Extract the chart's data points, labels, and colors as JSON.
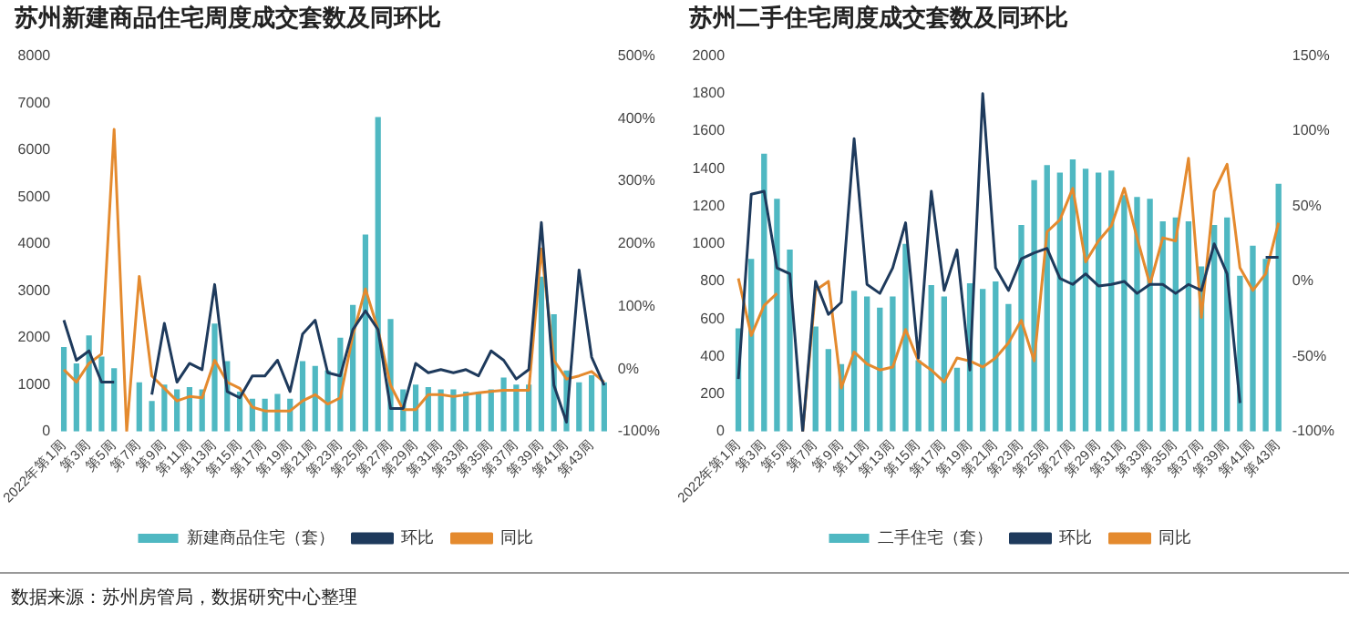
{
  "chart_data": [
    {
      "type": "bar",
      "title": "苏州新建商品住宅周度成交套数及同环比",
      "legend": "bottom",
      "marker": "none",
      "categories": [
        "2022年第1周",
        null,
        "第3周",
        null,
        "第5周",
        null,
        "第7周",
        null,
        "第9周",
        null,
        "第11周",
        null,
        "第13周",
        null,
        "第15周",
        null,
        "第17周",
        null,
        "第19周",
        null,
        "第21周",
        null,
        "第23周",
        null,
        "第25周",
        null,
        "第27周",
        null,
        "第29周",
        null,
        "第31周",
        null,
        "第33周",
        null,
        "第35周",
        null,
        "第37周",
        null,
        "第39周",
        null,
        "第41周",
        null,
        "第43周",
        null
      ],
      "series": [
        {
          "name": "新建商品住宅（套）",
          "color": "#4fb8c2",
          "values": [
            1800,
            1450,
            2050,
            1600,
            1350,
            null,
            1050,
            650,
            1000,
            900,
            950,
            900,
            2300,
            1500,
            850,
            700,
            700,
            800,
            700,
            1500,
            1400,
            1300,
            2000,
            2700,
            4200,
            6700,
            2400,
            900,
            1000,
            950,
            900,
            900,
            850,
            850,
            900,
            1150,
            1000,
            1000,
            3300,
            2500,
            1300,
            1050,
            1200,
            1050
          ]
        },
        {
          "name": "环比",
          "type": "line",
          "axis": "y2",
          "color": "#1e3a5c",
          "values": [
            78,
            14,
            29,
            -21,
            -21,
            null,
            null,
            -41,
            73,
            -21,
            9,
            -1,
            135,
            -36,
            -46,
            -11,
            -11,
            14,
            -36,
            56,
            78,
            -6,
            -11,
            63,
            93,
            63,
            -63,
            -63,
            9,
            -6,
            -1,
            -6,
            -1,
            -11,
            29,
            14,
            -16,
            -1,
            234,
            -26,
            -85,
            158,
            19,
            -26
          ]
        },
        {
          "name": "同比",
          "type": "line",
          "axis": "y2",
          "color": "#e48a2e",
          "values": [
            -1,
            -21,
            9,
            24,
            383,
            -100,
            148,
            -11,
            -31,
            -51,
            -44,
            -46,
            14,
            -21,
            -31,
            -61,
            -67,
            -67,
            -67,
            -51,
            -41,
            -56,
            -46,
            54,
            128,
            63,
            -26,
            -65,
            -65,
            -41,
            -41,
            -44,
            -41,
            -38,
            -36,
            -34,
            -34,
            -34,
            192,
            14,
            -16,
            -11,
            -4,
            -21
          ]
        }
      ],
      "ylim": [
        0,
        8000
      ],
      "yticks": [
        0,
        1000,
        2000,
        3000,
        4000,
        5000,
        6000,
        7000,
        8000
      ],
      "y2lim": [
        -100,
        500
      ],
      "y2ticks": [
        {
          "value": -100,
          "label": "-100%"
        },
        {
          "value": 0,
          "label": "0%"
        },
        {
          "value": 100,
          "label": "100%"
        },
        {
          "value": 200,
          "label": "200%"
        },
        {
          "value": 300,
          "label": "300%"
        },
        {
          "value": 400,
          "label": "400%"
        },
        {
          "value": 500,
          "label": "500%"
        }
      ],
      "annotations": [
        "数据来源：苏州房管局，数据研究中心整理"
      ]
    },
    {
      "type": "bar",
      "title": "苏州二手住宅周度成交套数及同环比",
      "legend": "bottom",
      "marker": "none",
      "categories": [
        "2022年第1周",
        null,
        "第3周",
        null,
        "第5周",
        null,
        "第7周",
        null,
        "第9周",
        null,
        "第11周",
        null,
        "第13周",
        null,
        "第15周",
        null,
        "第17周",
        null,
        "第19周",
        null,
        "第21周",
        null,
        "第23周",
        null,
        "第25周",
        null,
        "第27周",
        null,
        "第29周",
        null,
        "第31周",
        null,
        "第33周",
        null,
        "第35周",
        null,
        "第37周",
        null,
        "第39周",
        null,
        "第41周",
        null,
        "第43周"
      ],
      "series": [
        {
          "name": "二手住宅（套）",
          "color": "#4fb8c2",
          "values": [
            550,
            920,
            1480,
            1240,
            970,
            null,
            560,
            440,
            360,
            750,
            720,
            660,
            720,
            1000,
            380,
            780,
            720,
            340,
            790,
            760,
            800,
            680,
            1100,
            1340,
            1420,
            1380,
            1450,
            1400,
            1380,
            1390,
            1260,
            1250,
            1240,
            1120,
            1140,
            1120,
            880,
            1100,
            1140,
            830,
            990,
            920,
            1320
          ]
        },
        {
          "name": "环比",
          "type": "line",
          "axis": "y2",
          "color": "#1e3a5c",
          "values": [
            -65,
            58,
            60,
            9,
            5,
            -100,
            0,
            -22,
            -14,
            95,
            -2,
            -8,
            9,
            39,
            -51,
            60,
            -6,
            21,
            -59,
            125,
            9,
            -6,
            15,
            19,
            22,
            2,
            -2,
            5,
            -3,
            -2,
            0,
            -8,
            -2,
            -2,
            -8,
            -2,
            -6,
            25,
            5,
            -81,
            null,
            16,
            16
          ]
        },
        {
          "name": "同比",
          "type": "line",
          "axis": "y2",
          "color": "#e48a2e",
          "values": [
            2,
            -36,
            -16,
            -8,
            null,
            -100,
            -6,
            0,
            -71,
            -47,
            -55,
            -59,
            -57,
            -32,
            -53,
            -59,
            -67,
            -51,
            -53,
            -57,
            -51,
            -41,
            -26,
            -53,
            33,
            41,
            62,
            13,
            27,
            37,
            62,
            29,
            -2,
            29,
            27,
            82,
            -24,
            60,
            78,
            9,
            -6,
            5,
            39
          ]
        }
      ],
      "ylim": [
        0,
        2000
      ],
      "yticks": [
        0,
        200,
        400,
        600,
        800,
        1000,
        1200,
        1400,
        1600,
        1800,
        2000
      ],
      "y2lim": [
        -100,
        150
      ],
      "y2ticks": [
        {
          "value": -100,
          "label": "-100%"
        },
        {
          "value": -50,
          "label": "-50%"
        },
        {
          "value": 0,
          "label": "0%"
        },
        {
          "value": 50,
          "label": "50%"
        },
        {
          "value": 100,
          "label": "100%"
        },
        {
          "value": 150,
          "label": "150%"
        }
      ]
    }
  ]
}
